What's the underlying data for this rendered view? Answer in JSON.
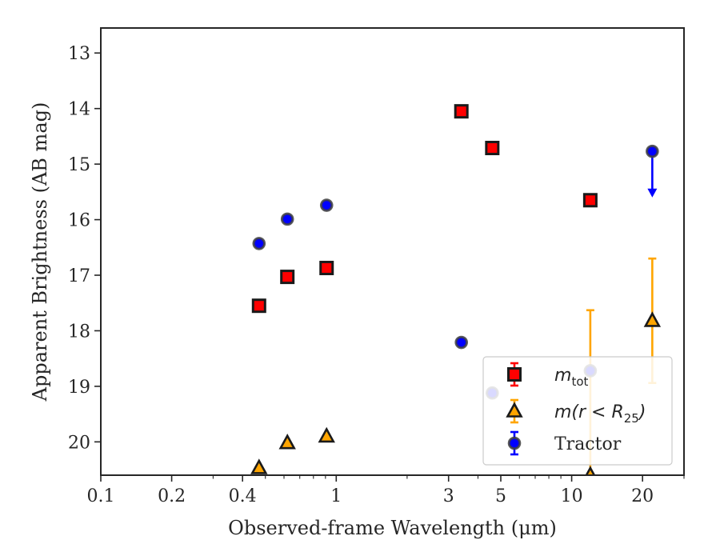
{
  "chart_data": {
    "type": "scatter",
    "xlabel": "Observed-frame Wavelength (μm)",
    "ylabel": "Apparent Brightness (AB mag)",
    "x_scale": "log",
    "xlim": [
      0.1,
      30
    ],
    "ylim": [
      20.6,
      12.55
    ],
    "y_inverted": true,
    "x_ticks": [
      {
        "value": 0.1,
        "label": "0.1"
      },
      {
        "value": 0.2,
        "label": "0.2"
      },
      {
        "value": 0.4,
        "label": "0.4"
      },
      {
        "value": 1,
        "label": "1"
      },
      {
        "value": 3,
        "label": "3"
      },
      {
        "value": 5,
        "label": "5"
      },
      {
        "value": 10,
        "label": "10"
      },
      {
        "value": 20,
        "label": "20"
      }
    ],
    "y_ticks": [
      {
        "value": 13,
        "label": "13"
      },
      {
        "value": 14,
        "label": "14"
      },
      {
        "value": 15,
        "label": "15"
      },
      {
        "value": 16,
        "label": "16"
      },
      {
        "value": 17,
        "label": "17"
      },
      {
        "value": 18,
        "label": "18"
      },
      {
        "value": 19,
        "label": "19"
      },
      {
        "value": 20,
        "label": "20"
      }
    ],
    "legend_position": "lower right",
    "grid": false,
    "series": [
      {
        "name": "m_tot",
        "marker": "square",
        "color": "#ff0000",
        "edge_color": "#1a1a1a",
        "points": [
          {
            "x": 0.47,
            "y": 17.55,
            "err": 0.03
          },
          {
            "x": 0.62,
            "y": 17.03,
            "err": 0.03
          },
          {
            "x": 0.91,
            "y": 16.87,
            "err": 0.03
          },
          {
            "x": 3.4,
            "y": 14.05,
            "err": 0.03
          },
          {
            "x": 4.6,
            "y": 14.71,
            "err": 0.03
          },
          {
            "x": 12.0,
            "y": 15.65,
            "err": 0.03
          }
        ]
      },
      {
        "name": "m(r < R25)",
        "marker": "triangle",
        "color": "#ffa500",
        "edge_color": "#1a1a1a",
        "points": [
          {
            "x": 0.47,
            "y": 20.47,
            "err": 0.03
          },
          {
            "x": 0.62,
            "y": 20.02,
            "err": 0.03
          },
          {
            "x": 0.91,
            "y": 19.9,
            "err": 0.03
          },
          {
            "x": 12.0,
            "y": 20.6,
            "err_low": 2.97,
            "err_high": 0
          },
          {
            "x": 22.0,
            "y": 17.82,
            "err_low": 1.12,
            "err_high": 1.12
          }
        ]
      },
      {
        "name": "Tractor",
        "marker": "circle",
        "color": "#0000ff",
        "edge_color": "#404040",
        "points": [
          {
            "x": 0.47,
            "y": 16.43,
            "err": 0.03
          },
          {
            "x": 0.62,
            "y": 15.99,
            "err": 0.03
          },
          {
            "x": 0.91,
            "y": 15.74,
            "err": 0.03
          },
          {
            "x": 3.4,
            "y": 18.21,
            "err": 0.03
          },
          {
            "x": 4.6,
            "y": 19.12,
            "err": 0.03
          },
          {
            "x": 12.0,
            "y": 18.72,
            "err": 0.03
          },
          {
            "x": 22.0,
            "y": 14.77,
            "upper_limit_arrow": 0.8
          }
        ]
      }
    ],
    "legend": [
      {
        "series": "m_tot",
        "label_main": "m",
        "label_sub": "tot",
        "label_rest": ""
      },
      {
        "series": "m(r < R25)",
        "label_main": "m(r < R",
        "label_sub": "25",
        "label_rest": ")"
      },
      {
        "series": "Tractor",
        "label_main": "Tractor",
        "label_sub": "",
        "label_rest": ""
      }
    ]
  }
}
